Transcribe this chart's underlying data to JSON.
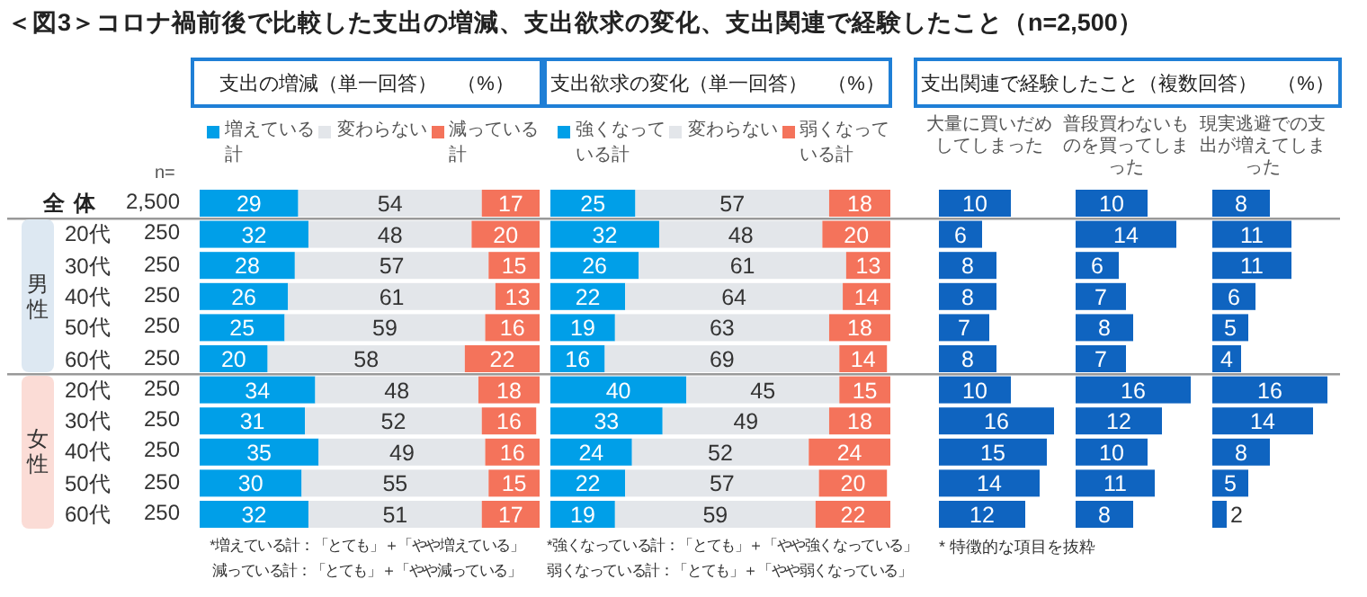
{
  "chart_data": [
    {
      "type": "bar",
      "orientation": "horizontal",
      "stacked": true,
      "data_labels": true,
      "legend": "top",
      "title": "＜図3＞コロナ禍前後で比較した支出の増減、支出欲求の変化、支出関連で経験したこと（n=2,500）",
      "subtitle": "支出の増減（単一回答）　（%）",
      "categories": [
        "全体",
        "20代",
        "30代",
        "40代",
        "50代",
        "60代",
        "20代",
        "30代",
        "40代",
        "50代",
        "60代"
      ],
      "series": [
        {
          "name": "増えている計",
          "color": "#009fe8",
          "values": [
            29,
            32,
            28,
            26,
            25,
            20,
            34,
            31,
            35,
            30,
            32
          ]
        },
        {
          "name": "変わらない",
          "color": "#e3e6ea",
          "values": [
            54,
            48,
            57,
            61,
            59,
            58,
            48,
            52,
            49,
            55,
            51
          ]
        },
        {
          "name": "減っている計",
          "color": "#f4735b",
          "values": [
            17,
            20,
            15,
            13,
            16,
            22,
            18,
            16,
            16,
            15,
            17
          ]
        }
      ],
      "annotations": [
        "n=",
        "2,500",
        "250",
        "250",
        "250",
        "250",
        "250",
        "250",
        "250",
        "250",
        "250",
        "250",
        "男性",
        "女性",
        "*増えている計：「とても」＋「やや増えている」",
        "減っている計：「とても」＋「やや減っている」"
      ]
    },
    {
      "type": "bar",
      "orientation": "horizontal",
      "stacked": true,
      "data_labels": true,
      "legend": "top",
      "title": "支出欲求の変化（単一回答）　（%）",
      "series": [
        {
          "name": "強くなっている計",
          "color": "#009fe8",
          "values": [
            25,
            32,
            26,
            22,
            19,
            16,
            40,
            33,
            24,
            22,
            19
          ]
        },
        {
          "name": "変わらない",
          "color": "#e3e6ea",
          "values": [
            57,
            48,
            61,
            64,
            63,
            69,
            45,
            49,
            52,
            57,
            59
          ]
        },
        {
          "name": "弱くなっている計",
          "color": "#f4735b",
          "values": [
            18,
            20,
            13,
            14,
            18,
            14,
            15,
            18,
            24,
            20,
            22
          ]
        }
      ],
      "annotations": [
        "*強くなっている計：「とても」＋「やや強くなっている」",
        "弱くなっている計：「とても」＋「やや弱くなっている」"
      ]
    },
    {
      "type": "bar",
      "orientation": "horizontal",
      "data_labels": true,
      "title": "支出関連で経験したこと（複数回答）　（%）",
      "subtitle": "大量に買いだめしてしまった",
      "series": [
        {
          "color": "#0f64c0",
          "values": [
            10,
            6,
            8,
            8,
            7,
            8,
            10,
            16,
            15,
            14,
            12
          ]
        }
      ],
      "annotations": [
        "* 特徴的な項目を抜粋"
      ]
    },
    {
      "type": "bar",
      "orientation": "horizontal",
      "data_labels": true,
      "subtitle": "普段買わないものを買ってしまった",
      "series": [
        {
          "color": "#0f64c0",
          "values": [
            10,
            14,
            6,
            7,
            8,
            7,
            16,
            12,
            10,
            11,
            8
          ]
        }
      ]
    },
    {
      "type": "bar",
      "orientation": "horizontal",
      "data_labels": true,
      "subtitle": "現実逃避での支出が増えてしまった",
      "series": [
        {
          "color": "#0f64c0",
          "values": [
            8,
            11,
            11,
            6,
            5,
            4,
            16,
            14,
            8,
            5,
            2
          ]
        }
      ]
    }
  ]
}
